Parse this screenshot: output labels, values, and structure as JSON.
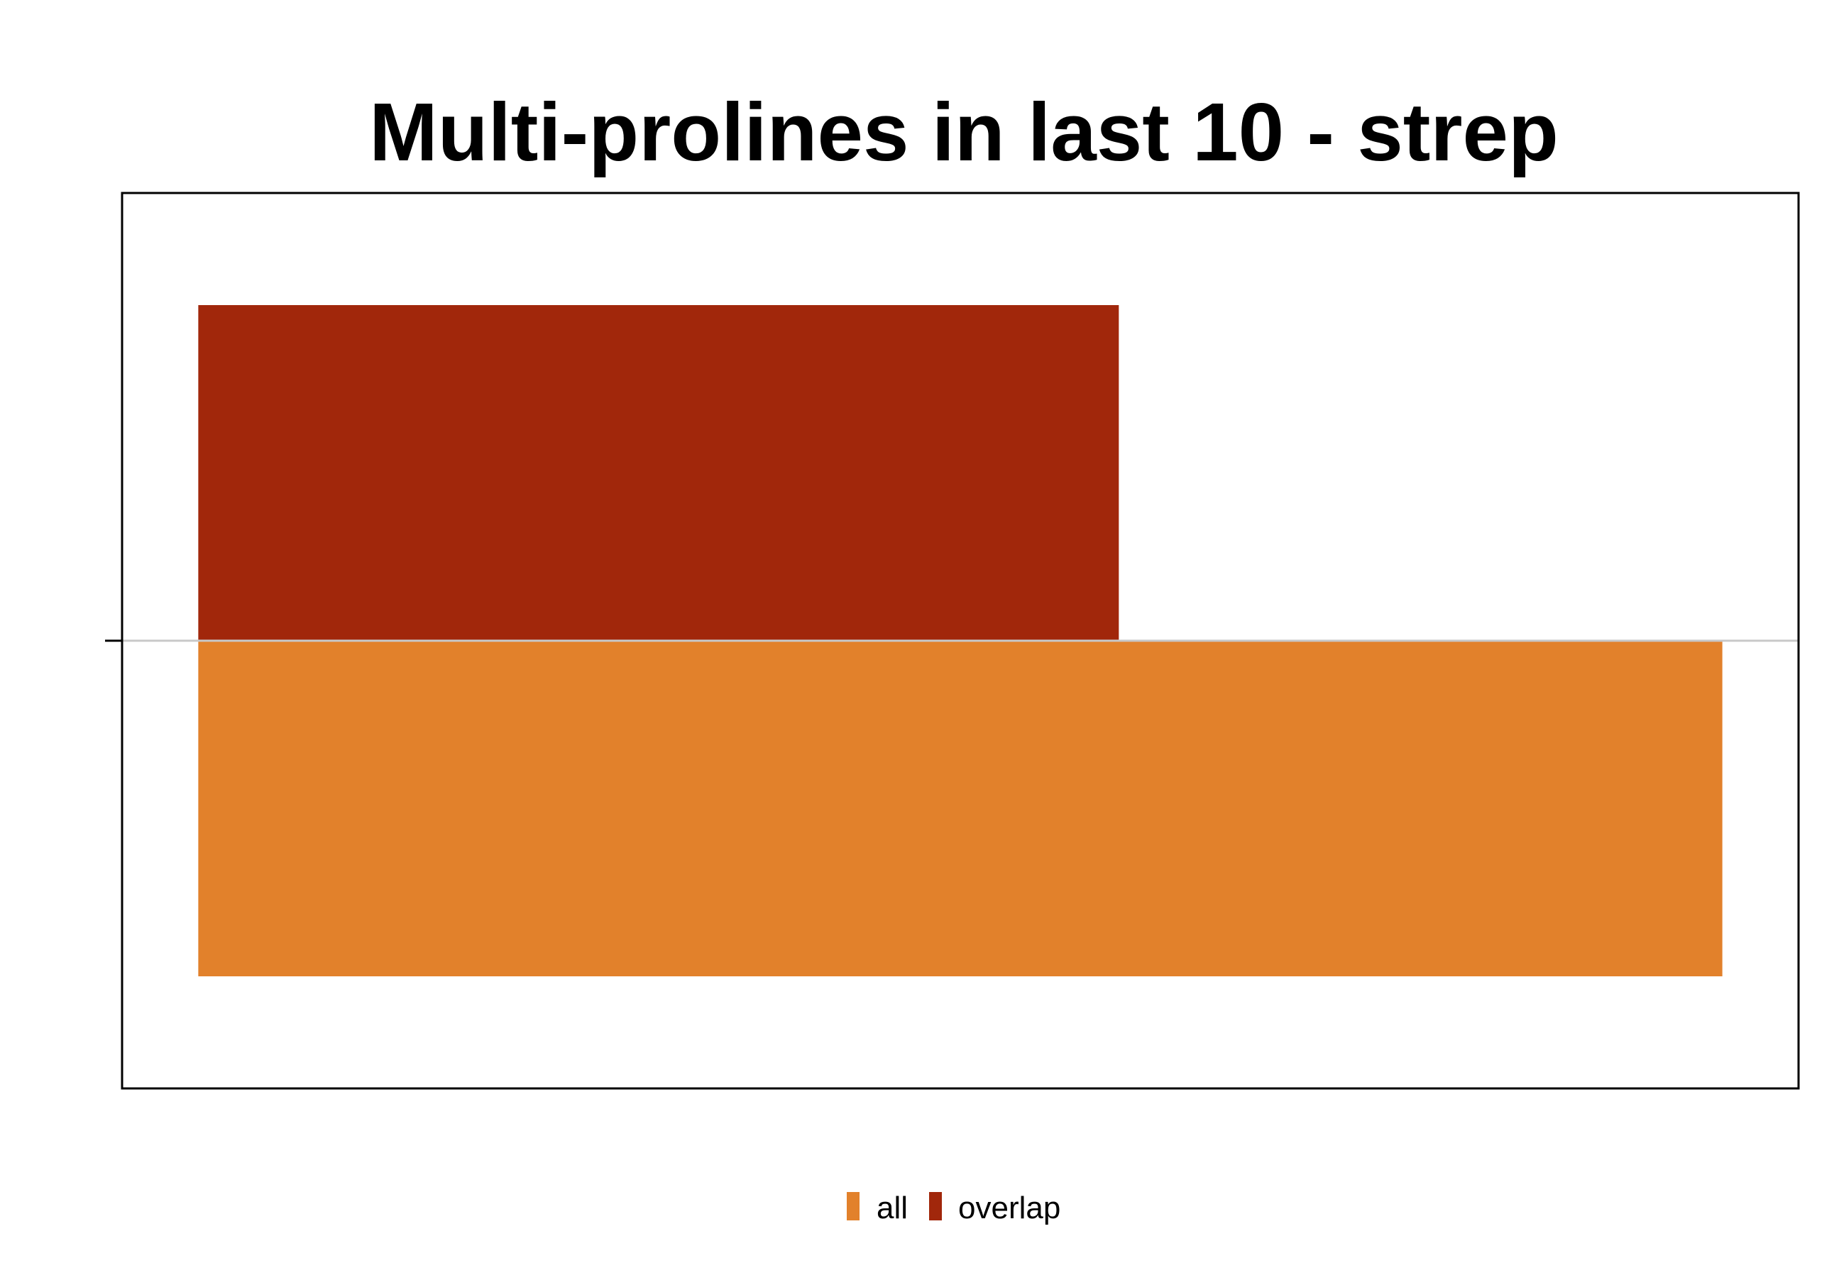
{
  "chart_data": {
    "type": "bar",
    "orientation": "horizontal",
    "title": "Multi-prolines in last 10 - strep",
    "xlabel": "",
    "ylabel": "",
    "categories": [
      ""
    ],
    "series": [
      {
        "name": "all",
        "values": [
          1.0
        ],
        "color": "#e2812b"
      },
      {
        "name": "overlap",
        "values": [
          0.604
        ],
        "color": "#a1270b"
      }
    ],
    "xlim": [
      -0.05,
      1.05
    ],
    "grid": false,
    "legend": {
      "position": "bottom",
      "entries": [
        "all",
        "overlap"
      ]
    }
  }
}
